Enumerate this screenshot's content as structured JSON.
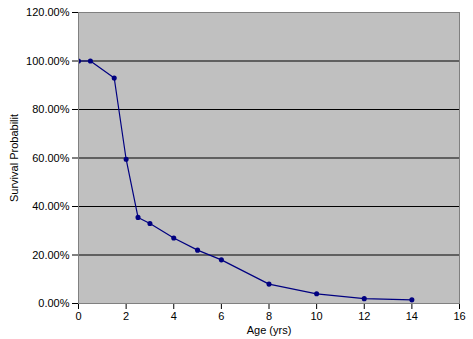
{
  "chart_data": {
    "type": "line",
    "x_label": "Age (yrs)",
    "y_label": "Survival Probabilit",
    "x": [
      0,
      0.5,
      1.5,
      2,
      2.5,
      3,
      4,
      5,
      6,
      8,
      10,
      12,
      14
    ],
    "values": [
      100,
      100,
      93,
      59.5,
      35.5,
      33,
      27,
      22,
      18,
      8,
      4,
      2,
      1.5
    ],
    "color": "#000080",
    "marker": "circle",
    "line_style": "solid",
    "xlim": [
      0,
      16
    ],
    "xticks": [
      0,
      2,
      4,
      6,
      8,
      10,
      12,
      14,
      16
    ],
    "ylim": [
      0,
      120
    ],
    "yticks": [
      {
        "value": 0,
        "label": "0.00%"
      },
      {
        "value": 20,
        "label": "20.00%"
      },
      {
        "value": 40,
        "label": "40.00%"
      },
      {
        "value": 60,
        "label": "60.00%"
      },
      {
        "value": 80,
        "label": "80.00%"
      },
      {
        "value": 100,
        "label": "100.00%"
      },
      {
        "value": 120,
        "label": "120.00%"
      }
    ],
    "grid": true
  }
}
